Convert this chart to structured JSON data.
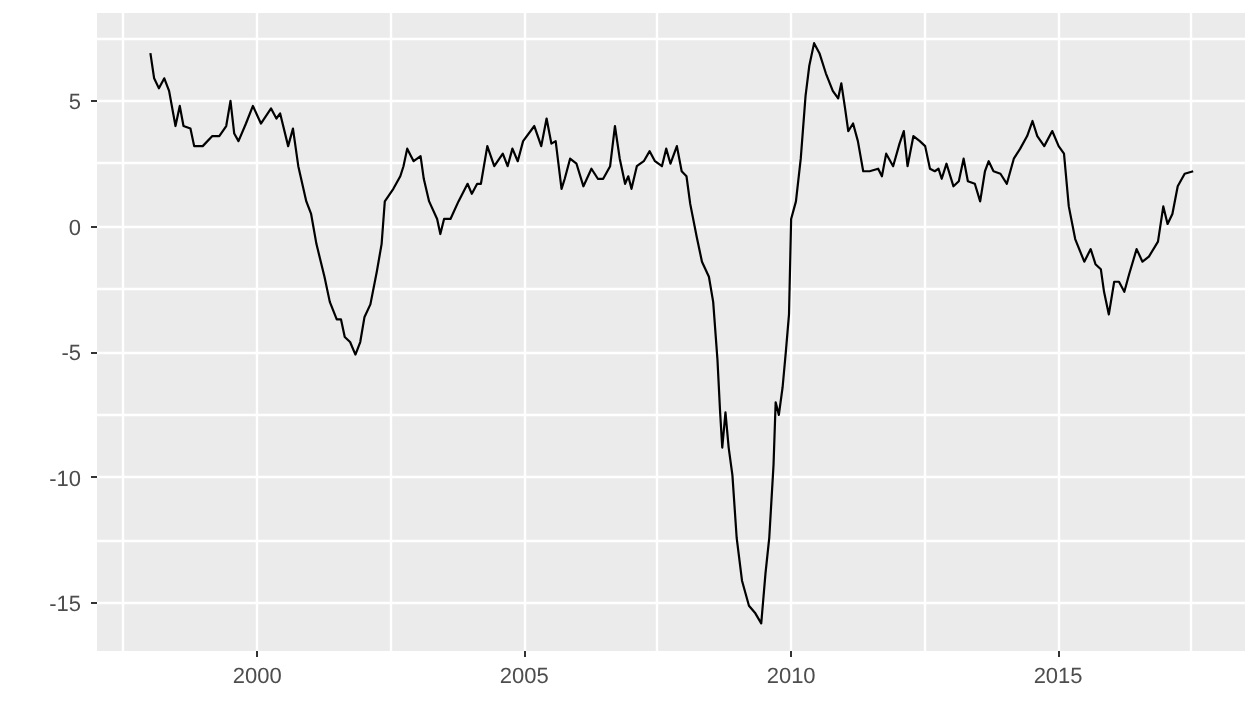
{
  "chart_data": {
    "type": "line",
    "grid": true,
    "line_style": "solid",
    "xlim": [
      1997.0,
      2018.5
    ],
    "ylim": [
      -16.9,
      8.5
    ],
    "xticks": [
      {
        "value": 1997.5,
        "label": null
      },
      2000,
      {
        "value": 2002.5,
        "label": null
      },
      2005,
      {
        "value": 2007.5,
        "label": null
      },
      2010,
      {
        "value": 2012.5,
        "label": null
      },
      2015,
      {
        "value": 2017.5,
        "label": null
      }
    ],
    "yticks": [
      -15,
      {
        "value": -12.5,
        "label": null
      },
      -10,
      {
        "value": -7.5,
        "label": null
      },
      -5,
      {
        "value": -2.5,
        "label": null
      },
      0,
      {
        "value": 2.5,
        "label": null
      },
      5,
      {
        "value": 7.5,
        "label": null
      }
    ],
    "series": [
      {
        "color": "#000000",
        "x": [
          1998.0,
          1998.07,
          1998.16,
          1998.26,
          1998.35,
          1998.47,
          1998.55,
          1998.62,
          1998.75,
          1998.82,
          1998.98,
          1999.16,
          1999.29,
          1999.42,
          1999.5,
          1999.57,
          1999.65,
          1999.79,
          1999.92,
          2000.07,
          2000.26,
          2000.36,
          2000.43,
          2000.58,
          2000.67,
          2000.77,
          2000.92,
          2001.01,
          2001.11,
          2001.26,
          2001.36,
          2001.49,
          2001.57,
          2001.64,
          2001.74,
          2001.84,
          2001.93,
          2002.01,
          2002.12,
          2002.24,
          2002.33,
          2002.39,
          2002.55,
          2002.68,
          2002.74,
          2002.81,
          2002.93,
          2003.06,
          2003.12,
          2003.22,
          2003.37,
          2003.43,
          2003.5,
          2003.62,
          2003.77,
          2003.94,
          2004.02,
          2004.12,
          2004.19,
          2004.31,
          2004.44,
          2004.6,
          2004.69,
          2004.78,
          2004.88,
          2004.98,
          2005.19,
          2005.32,
          2005.42,
          2005.51,
          2005.59,
          2005.7,
          2005.76,
          2005.86,
          2005.98,
          2006.11,
          2006.26,
          2006.38,
          2006.48,
          2006.61,
          2006.7,
          2006.79,
          2006.89,
          2006.95,
          2007.01,
          2007.11,
          2007.24,
          2007.35,
          2007.45,
          2007.58,
          2007.66,
          2007.74,
          2007.86,
          2007.95,
          2008.04,
          2008.11,
          2008.23,
          2008.33,
          2008.46,
          2008.54,
          2008.62,
          2008.67,
          2008.71,
          2008.77,
          2008.83,
          2008.9,
          2008.98,
          2009.08,
          2009.21,
          2009.33,
          2009.44,
          2009.52,
          2009.59,
          2009.67,
          2009.71,
          2009.77,
          2009.84,
          2009.9,
          2009.96,
          2010.0,
          2010.09,
          2010.18,
          2010.27,
          2010.34,
          2010.43,
          2010.53,
          2010.65,
          2010.78,
          2010.88,
          2010.94,
          2011.01,
          2011.07,
          2011.16,
          2011.25,
          2011.35,
          2011.47,
          2011.63,
          2011.7,
          2011.78,
          2011.91,
          2012.03,
          2012.11,
          2012.18,
          2012.29,
          2012.41,
          2012.51,
          2012.6,
          2012.69,
          2012.76,
          2012.82,
          2012.91,
          2013.04,
          2013.14,
          2013.23,
          2013.31,
          2013.44,
          2013.54,
          2013.63,
          2013.7,
          2013.79,
          2013.92,
          2014.04,
          2014.17,
          2014.29,
          2014.42,
          2014.52,
          2014.61,
          2014.74,
          2014.89,
          2015.01,
          2015.11,
          2015.2,
          2015.32,
          2015.49,
          2015.61,
          2015.7,
          2015.8,
          2015.86,
          2015.95,
          2016.05,
          2016.14,
          2016.24,
          2016.33,
          2016.47,
          2016.58,
          2016.7,
          2016.87,
          2016.97,
          2017.05,
          2017.14,
          2017.24,
          2017.37,
          2017.53
        ],
        "values": [
          6.9,
          5.9,
          5.5,
          5.9,
          5.4,
          4.0,
          4.8,
          4.0,
          3.9,
          3.2,
          3.2,
          3.6,
          3.6,
          4.0,
          5.0,
          3.7,
          3.4,
          4.1,
          4.8,
          4.1,
          4.7,
          4.3,
          4.5,
          3.2,
          3.9,
          2.4,
          1.0,
          0.5,
          -0.7,
          -2.0,
          -3.0,
          -3.7,
          -3.7,
          -4.4,
          -4.6,
          -5.1,
          -4.6,
          -3.6,
          -3.1,
          -1.8,
          -0.7,
          1.0,
          1.5,
          2.0,
          2.4,
          3.1,
          2.6,
          2.8,
          1.9,
          1.0,
          0.3,
          -0.3,
          0.3,
          0.3,
          1.0,
          1.7,
          1.3,
          1.7,
          1.7,
          3.2,
          2.4,
          2.9,
          2.4,
          3.1,
          2.6,
          3.4,
          4.0,
          3.2,
          4.3,
          3.3,
          3.4,
          1.5,
          1.9,
          2.7,
          2.5,
          1.6,
          2.3,
          1.9,
          1.9,
          2.4,
          4.0,
          2.7,
          1.7,
          2.0,
          1.5,
          2.4,
          2.6,
          3.0,
          2.6,
          2.4,
          3.1,
          2.5,
          3.2,
          2.2,
          2.0,
          0.9,
          -0.4,
          -1.4,
          -2.0,
          -3.0,
          -5.3,
          -7.4,
          -8.8,
          -7.4,
          -8.8,
          -9.9,
          -12.4,
          -14.1,
          -15.1,
          -15.4,
          -15.8,
          -13.8,
          -12.4,
          -9.5,
          -7.0,
          -7.5,
          -6.4,
          -5.0,
          -3.5,
          0.3,
          1.0,
          2.7,
          5.2,
          6.4,
          7.3,
          6.9,
          6.1,
          5.4,
          5.1,
          5.7,
          4.7,
          3.8,
          4.1,
          3.4,
          2.2,
          2.2,
          2.3,
          2.0,
          2.9,
          2.4,
          3.3,
          3.8,
          2.4,
          3.6,
          3.4,
          3.2,
          2.3,
          2.2,
          2.3,
          1.9,
          2.5,
          1.6,
          1.8,
          2.7,
          1.8,
          1.7,
          1.0,
          2.2,
          2.6,
          2.2,
          2.1,
          1.7,
          2.7,
          3.1,
          3.6,
          4.2,
          3.6,
          3.2,
          3.8,
          3.2,
          2.9,
          0.8,
          -0.5,
          -1.4,
          -0.9,
          -1.5,
          -1.7,
          -2.6,
          -3.5,
          -2.2,
          -2.2,
          -2.6,
          -1.9,
          -0.9,
          -1.4,
          -1.2,
          -0.6,
          0.8,
          0.1,
          0.5,
          1.6,
          2.1,
          2.2
        ]
      }
    ]
  }
}
